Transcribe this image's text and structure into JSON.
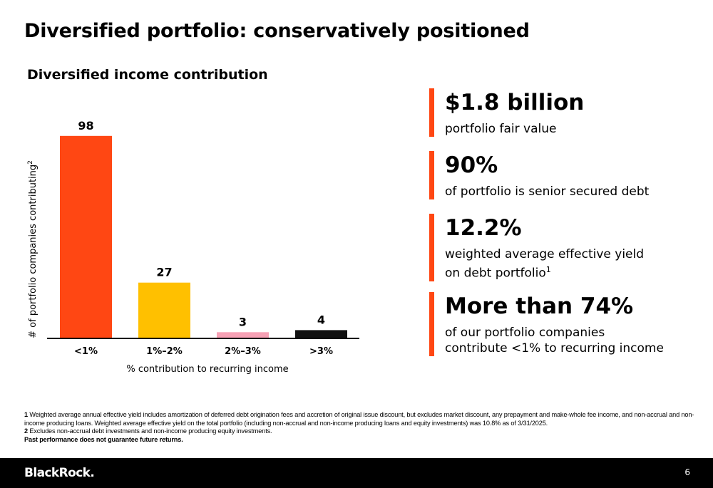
{
  "slide": {
    "title": "Diversified portfolio: conservatively positioned",
    "page_number": "6"
  },
  "chart_data": {
    "type": "bar",
    "title": "Diversified income contribution",
    "xlabel": "% contribution to recurring income",
    "ylabel": "# of portfolio companies contributing",
    "ylabel_superscript": "2",
    "categories": [
      "<1%",
      "1%–2%",
      "2%–3%",
      ">3%"
    ],
    "values": [
      98,
      27,
      3,
      4
    ],
    "data_labels": [
      "98",
      "27",
      "3",
      "4"
    ],
    "colors": [
      "#ff4713",
      "#ffc000",
      "#f7a1b5",
      "#111111"
    ],
    "ylim": [
      0,
      100
    ],
    "grid": false,
    "legend": "none"
  },
  "stats": [
    {
      "value": "$1.8 billion",
      "desc": "portfolio fair value"
    },
    {
      "value": "90%",
      "desc": "of portfolio is senior secured debt"
    },
    {
      "value": "12.2%",
      "desc_line1": "weighted average effective yield",
      "desc_line2": "on debt portfolio",
      "sup": "1"
    },
    {
      "value": "More than 74%",
      "desc_line1": "of our portfolio companies",
      "desc_line2": "contribute <1% to recurring income"
    }
  ],
  "footnotes": {
    "n1_num": "1",
    "n1_text": "Weighted average annual effective yield includes amortization of deferred debt origination fees and accretion of original issue discount, but excludes market discount, any prepayment and make-whole fee income, and non-accrual and non-income producing loans. Weighted average effective yield on the total portfolio (including non-accrual and non-income producing loans and equity investments) was 10.8% as of 3/31/2025.",
    "n2_num": "2",
    "n2_text": "Excludes non-accrual debt investments and non-income producing equity investments.",
    "disclaimer": "Past performance does not guarantee future returns."
  },
  "footer": {
    "logo": "BlackRock."
  },
  "colors": {
    "accent": "#ff4713",
    "footer_bg": "#000000"
  }
}
